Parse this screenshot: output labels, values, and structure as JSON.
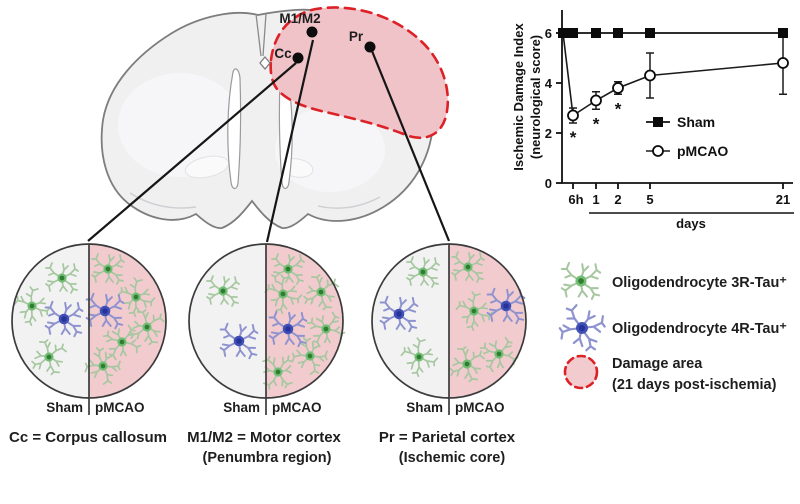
{
  "brain_map": {
    "region_labels": [
      {
        "id": "m1m2",
        "label": "M1/M2"
      },
      {
        "id": "pr",
        "label": "Pr"
      },
      {
        "id": "cc",
        "label": "Cc"
      }
    ]
  },
  "chart_data": {
    "type": "line",
    "ylabel_line1": "Ischemic Damage Index",
    "ylabel_line2": "(neurological score)",
    "xlabel": "days",
    "x_categories": [
      "6h",
      "1",
      "2",
      "5",
      "21"
    ],
    "y_ticks": [
      0,
      2,
      4,
      6
    ],
    "ylim": [
      0,
      6.8
    ],
    "legend_position": "inside-right",
    "series": [
      {
        "name": "Sham",
        "marker": "filled-square",
        "start_value": 6,
        "values": [
          6,
          6,
          6,
          6,
          6
        ]
      },
      {
        "name": "pMCAO",
        "marker": "open-circle",
        "start_value": 6,
        "values": [
          2.7,
          3.3,
          3.8,
          4.3,
          4.8
        ],
        "errors": [
          0.3,
          0.35,
          0.25,
          0.9,
          1.25
        ]
      }
    ],
    "significance": {
      "symbol": "*",
      "at": [
        "6h",
        "1",
        "2"
      ]
    }
  },
  "panels": [
    {
      "id": "cc",
      "sham_label": "Sham",
      "pmcao_label": "pMCAO",
      "caption": "Cc = Corpus callosum",
      "subcaption": "",
      "cells": {
        "sham_green": 3,
        "sham_blue": 1,
        "pmcao_green": 5,
        "pmcao_blue": 1
      }
    },
    {
      "id": "m1m2",
      "sham_label": "Sham",
      "pmcao_label": "pMCAO",
      "caption": "M1/M2 = Motor cortex",
      "subcaption": "(Penumbra region)",
      "cells": {
        "sham_green": 1,
        "sham_blue": 1,
        "pmcao_green": 6,
        "pmcao_blue": 1
      }
    },
    {
      "id": "pr",
      "sham_label": "Sham",
      "pmcao_label": "pMCAO",
      "caption": "Pr = Parietal cortex",
      "subcaption": "(Ischemic core)",
      "cells": {
        "sham_green": 2,
        "sham_blue": 1,
        "pmcao_green": 4,
        "pmcao_blue": 1
      }
    }
  ],
  "legend": {
    "items": [
      {
        "icon": "oligodendrocyte-green-icon",
        "label": "Oligodendrocyte 3R-Tau⁺"
      },
      {
        "icon": "oligodendrocyte-blue-icon",
        "label": "Oligodendrocyte 4R-Tau⁺"
      },
      {
        "icon": "damage-area-icon",
        "label": "Damage area",
        "label2": "(21 days post-ischemia)"
      }
    ]
  },
  "colors": {
    "damage_fill": "#efc3c8",
    "damage_border": "#dc2127",
    "green_cell": "#74bd74",
    "green_nucleus": "#2e7d32",
    "blue_cell": "#4150b5",
    "blue_nucleus": "#27339b",
    "sham_half": "#f2f2f3",
    "pmcao_half": "#f2cbcf"
  }
}
